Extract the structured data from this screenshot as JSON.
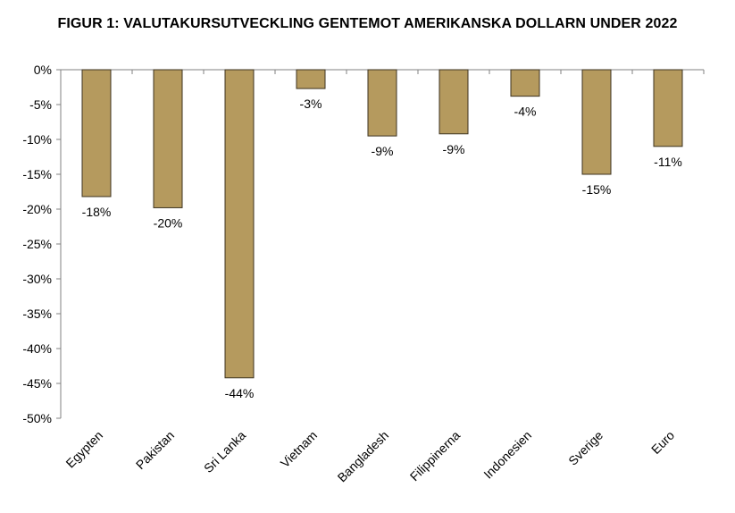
{
  "chart_data": {
    "type": "bar",
    "title": "FIGUR 1: VALUTAKURSUTVECKLING GENTEMOT AMERIKANSKA DOLLARN UNDER 2022",
    "categories": [
      "Egypten",
      "Pakistan",
      "Sri Lanka",
      "Vietnam",
      "Bangladesh",
      "Filippinerna",
      "Indonesien",
      "Sverige",
      "Euro"
    ],
    "values": [
      -18.2,
      -19.8,
      -44.2,
      -2.7,
      -9.5,
      -9.2,
      -3.8,
      -15.0,
      -11.0
    ],
    "data_labels": [
      "-18%",
      "-20%",
      "-44%",
      "-3%",
      "-9%",
      "-9%",
      "-4%",
      "-15%",
      "-11%"
    ],
    "ylim": [
      -50,
      0
    ],
    "yticks": [
      0,
      -5,
      -10,
      -15,
      -20,
      -25,
      -30,
      -35,
      -40,
      -45,
      -50
    ],
    "ytick_labels": [
      "0%",
      "-5%",
      "-10%",
      "-15%",
      "-20%",
      "-25%",
      "-30%",
      "-35%",
      "-40%",
      "-45%",
      "-50%"
    ],
    "xlabel": "",
    "ylabel": "",
    "bar_color": "#b59a5e",
    "bar_edge_color": "#3d3320",
    "grid": false,
    "legend": "none"
  }
}
